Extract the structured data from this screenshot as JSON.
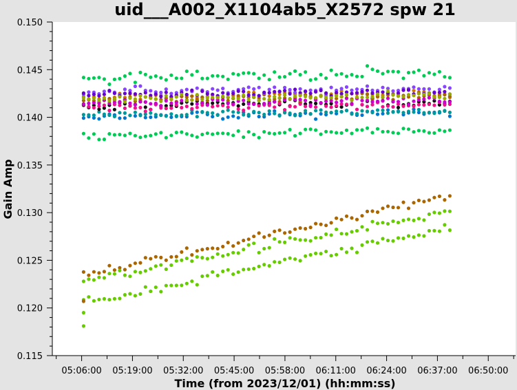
{
  "chart_data": {
    "type": "scatter",
    "title": "uid___A002_X1104ab5_X2572 spw 21",
    "xlabel": "Time (from 2023/12/01) (hh:mm:ss)",
    "ylabel": "Gain Amp",
    "ylim": [
      0.115,
      0.15
    ],
    "yticks": [
      "0.115",
      "0.120",
      "0.125",
      "0.130",
      "0.135",
      "0.140",
      "0.145",
      "0.150"
    ],
    "xticks": [
      "05:06:00",
      "05:19:00",
      "05:32:00",
      "05:45:00",
      "05:58:00",
      "06:11:00",
      "06:24:00",
      "06:37:00",
      "06:50:00"
    ],
    "xrange": [
      "04:58:30",
      "06:57:00"
    ],
    "grid": false,
    "legend": "none",
    "time_span": [
      "05:06:30",
      "06:40:10"
    ],
    "samples": 72,
    "background": "#ffffff",
    "series": [
      {
        "color": "#00cc55",
        "role": "upper scatter envelope",
        "center": [
          0.1441,
          0.1447
        ],
        "spread": 0.0009
      },
      {
        "color": "#00cc55",
        "role": "lower scatter envelope",
        "center": [
          0.138,
          0.1387
        ],
        "spread": 0.0006
      },
      {
        "color": "#0077cc",
        "center": [
          0.14,
          0.1405
        ],
        "spread": 0.0006
      },
      {
        "color": "#009999",
        "center": [
          0.1403,
          0.1407
        ],
        "spread": 0.0005
      },
      {
        "color": "#111111",
        "center": [
          0.1413,
          0.1416
        ],
        "spread": 0.0006
      },
      {
        "color": "#cc7700",
        "center": [
          0.1421,
          0.1425
        ],
        "spread": 0.0006
      },
      {
        "color": "#aa6600",
        "center": [
          0.1418,
          0.1422
        ],
        "spread": 0.0005
      },
      {
        "color": "#8844ff",
        "center": [
          0.1427,
          0.143
        ],
        "spread": 0.0006
      },
      {
        "color": "#6600cc",
        "center": [
          0.1424,
          0.1427
        ],
        "spread": 0.0005
      },
      {
        "color": "#ee1188",
        "center": [
          0.141,
          0.1413
        ],
        "spread": 0.0006
      },
      {
        "color": "#cc00cc",
        "center": [
          0.1415,
          0.1418
        ],
        "spread": 0.0005
      },
      {
        "color": "#99aa00",
        "center": [
          0.1419,
          0.1423
        ],
        "spread": 0.0006
      },
      {
        "color": "#aa6600",
        "role": "rising",
        "start": 0.1235,
        "end": 0.1318,
        "spread": 0.0006
      },
      {
        "color": "#66cc00",
        "role": "rising",
        "start": 0.1228,
        "end": 0.1302,
        "spread": 0.0007
      },
      {
        "color": "#66cc00",
        "role": "rising",
        "start": 0.1205,
        "end": 0.1285,
        "spread": 0.0008
      }
    ],
    "first_points": [
      {
        "color": "#aa6600",
        "y": 0.1207
      },
      {
        "color": "#66cc00",
        "y": 0.1195
      },
      {
        "color": "#66cc00",
        "y": 0.1181
      }
    ]
  }
}
